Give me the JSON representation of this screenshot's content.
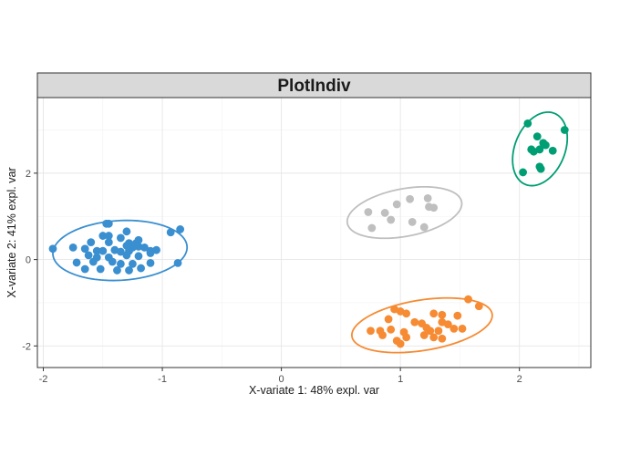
{
  "chart_data": {
    "type": "scatter",
    "title": "PlotIndiv",
    "xlabel": "X-variate 1: 48% expl. var",
    "ylabel": "X-variate 2: 41% expl. var",
    "xlim": [
      -2.05,
      2.6
    ],
    "ylim": [
      -2.5,
      3.75
    ],
    "xticks": [
      -2,
      -1,
      0,
      1,
      2
    ],
    "yticks": [
      -2,
      0,
      2
    ],
    "xtick_labels": [
      "-2",
      "-1",
      "0",
      "1",
      "2"
    ],
    "ytick_labels": [
      "-2",
      "0",
      "2"
    ],
    "grid": true,
    "ellipses": true,
    "series": [
      {
        "color": "#3a8fd0",
        "points": [
          [
            -1.92,
            0.25
          ],
          [
            -1.47,
            0.83
          ],
          [
            -1.45,
            0.83
          ],
          [
            -1.3,
            0.65
          ],
          [
            -1.5,
            0.55
          ],
          [
            -1.45,
            0.55
          ],
          [
            -1.35,
            0.5
          ],
          [
            -1.2,
            0.45
          ],
          [
            -1.6,
            0.4
          ],
          [
            -1.45,
            0.4
          ],
          [
            -1.28,
            0.38
          ],
          [
            -1.22,
            0.38
          ],
          [
            -1.3,
            0.32
          ],
          [
            -1.25,
            0.28
          ],
          [
            -1.2,
            0.3
          ],
          [
            -1.15,
            0.28
          ],
          [
            -1.75,
            0.28
          ],
          [
            -1.65,
            0.25
          ],
          [
            -1.55,
            0.2
          ],
          [
            -1.5,
            0.2
          ],
          [
            -1.4,
            0.22
          ],
          [
            -1.35,
            0.18
          ],
          [
            -1.28,
            0.2
          ],
          [
            -1.1,
            0.2
          ],
          [
            -1.05,
            0.22
          ],
          [
            -1.62,
            0.1
          ],
          [
            -1.55,
            0.05
          ],
          [
            -1.45,
            0.05
          ],
          [
            -1.3,
            0.1
          ],
          [
            -1.2,
            0.08
          ],
          [
            -1.1,
            0.15
          ],
          [
            -0.85,
            0.7
          ],
          [
            -0.93,
            0.63
          ],
          [
            -1.72,
            -0.07
          ],
          [
            -1.58,
            -0.05
          ],
          [
            -1.42,
            -0.05
          ],
          [
            -1.35,
            -0.1
          ],
          [
            -1.25,
            -0.1
          ],
          [
            -1.1,
            -0.08
          ],
          [
            -0.87,
            -0.08
          ],
          [
            -1.65,
            -0.22
          ],
          [
            -1.52,
            -0.22
          ],
          [
            -1.38,
            -0.25
          ],
          [
            -1.28,
            -0.25
          ],
          [
            -1.18,
            -0.2
          ]
        ]
      },
      {
        "color": "#f68b33",
        "points": [
          [
            1.57,
            -0.92
          ],
          [
            1.66,
            -1.08
          ],
          [
            0.95,
            -1.15
          ],
          [
            1.0,
            -1.2
          ],
          [
            1.05,
            -1.25
          ],
          [
            1.28,
            -1.25
          ],
          [
            1.35,
            -1.28
          ],
          [
            1.48,
            -1.3
          ],
          [
            0.9,
            -1.38
          ],
          [
            1.12,
            -1.45
          ],
          [
            1.18,
            -1.48
          ],
          [
            1.35,
            -1.45
          ],
          [
            1.4,
            -1.5
          ],
          [
            1.22,
            -1.58
          ],
          [
            0.75,
            -1.65
          ],
          [
            0.83,
            -1.65
          ],
          [
            0.92,
            -1.62
          ],
          [
            1.03,
            -1.68
          ],
          [
            1.25,
            -1.65
          ],
          [
            1.32,
            -1.65
          ],
          [
            1.45,
            -1.6
          ],
          [
            1.52,
            -1.6
          ],
          [
            0.85,
            -1.75
          ],
          [
            0.97,
            -1.88
          ],
          [
            1.05,
            -1.8
          ],
          [
            1.2,
            -1.75
          ],
          [
            1.28,
            -1.8
          ],
          [
            1.35,
            -1.83
          ],
          [
            1.0,
            -1.95
          ]
        ]
      },
      {
        "color": "#bfbfbf",
        "points": [
          [
            0.73,
            1.1
          ],
          [
            0.87,
            1.08
          ],
          [
            0.97,
            1.28
          ],
          [
            1.08,
            1.4
          ],
          [
            1.23,
            1.42
          ],
          [
            1.24,
            1.22
          ],
          [
            1.28,
            1.2
          ],
          [
            0.92,
            0.92
          ],
          [
            1.1,
            0.87
          ],
          [
            1.2,
            0.75
          ],
          [
            0.76,
            0.73
          ]
        ]
      },
      {
        "color": "#009e73",
        "points": [
          [
            2.07,
            3.15
          ],
          [
            2.38,
            3.0
          ],
          [
            2.15,
            2.85
          ],
          [
            2.2,
            2.7
          ],
          [
            2.22,
            2.65
          ],
          [
            2.12,
            2.5
          ],
          [
            2.17,
            2.55
          ],
          [
            2.28,
            2.52
          ],
          [
            2.1,
            2.55
          ],
          [
            2.17,
            2.15
          ],
          [
            2.18,
            2.1
          ],
          [
            2.03,
            2.02
          ]
        ]
      }
    ]
  }
}
